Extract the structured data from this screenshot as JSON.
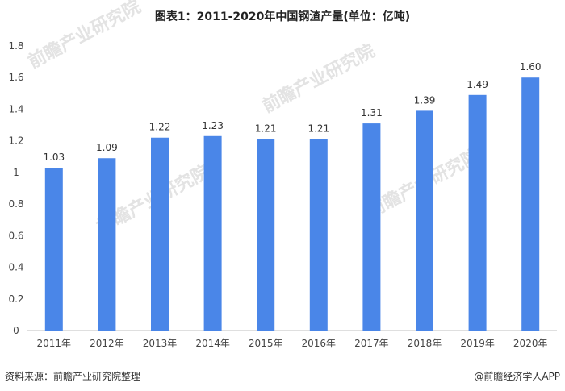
{
  "title": "图表1：2011-2020年中国钢渣产量(单位：亿吨)",
  "source": "资料来源：前瞻产业研究院整理",
  "brand": "@前瞻经济学人APP",
  "watermark": "前瞻产业研究院",
  "colors": {
    "bar": "#4a86e8",
    "axis": "#bfbfbf"
  },
  "chart_data": {
    "type": "bar",
    "title": "图表1：2011-2020年中国钢渣产量(单位：亿吨)",
    "categories": [
      "2011年",
      "2012年",
      "2013年",
      "2014年",
      "2015年",
      "2016年",
      "2017年",
      "2018年",
      "2019年",
      "2020年"
    ],
    "values": [
      1.03,
      1.09,
      1.22,
      1.23,
      1.21,
      1.21,
      1.31,
      1.39,
      1.49,
      1.6
    ],
    "data_labels": [
      "1.03",
      "1.09",
      "1.22",
      "1.23",
      "1.21",
      "1.21",
      "1.31",
      "1.39",
      "1.49",
      "1.60"
    ],
    "yticks": [
      "0",
      "0.2",
      "0.4",
      "0.6",
      "0.8",
      "1",
      "1.2",
      "1.4",
      "1.6",
      "1.8"
    ],
    "ylim": [
      0,
      1.8
    ],
    "xlabel": "",
    "ylabel": "",
    "grid": false,
    "legend": "none"
  }
}
